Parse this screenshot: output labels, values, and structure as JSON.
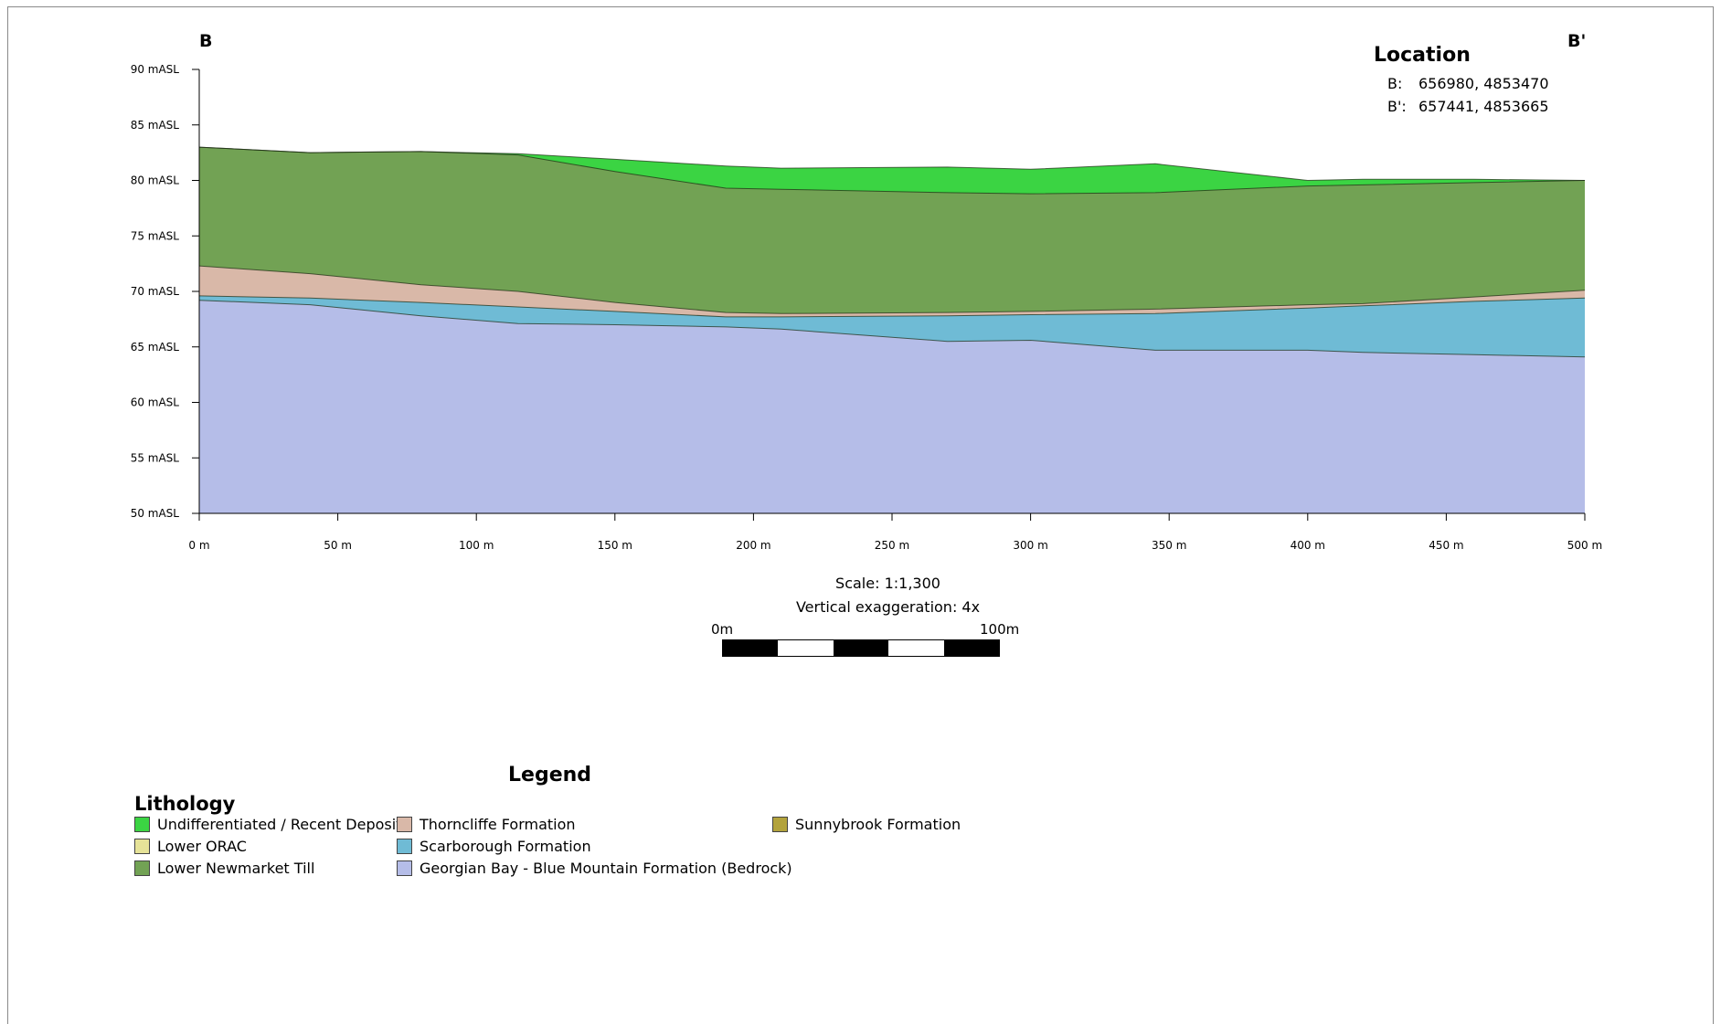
{
  "section": {
    "start_label": "B",
    "end_label": "B'",
    "y_unit_suffix": " mASL",
    "x_unit_suffix": " m",
    "y_ticks": [
      50,
      55,
      60,
      65,
      70,
      75,
      80,
      85,
      90
    ],
    "x_ticks": [
      0,
      50,
      100,
      150,
      200,
      250,
      300,
      350,
      400,
      450,
      500
    ],
    "y_range": [
      50,
      90
    ],
    "x_range": [
      0,
      500
    ],
    "layers": [
      {
        "name": "Georgian Bay - Blue Mountain Formation (Bedrock)",
        "color": "#b5bde8",
        "top": [
          [
            0,
            69.2
          ],
          [
            40,
            68.8
          ],
          [
            80,
            67.8
          ],
          [
            115,
            67.1
          ],
          [
            150,
            67.0
          ],
          [
            190,
            66.8
          ],
          [
            210,
            66.6
          ],
          [
            270,
            65.5
          ],
          [
            300,
            65.6
          ],
          [
            345,
            64.7
          ],
          [
            400,
            64.7
          ],
          [
            420,
            64.5
          ],
          [
            460,
            64.3
          ],
          [
            500,
            64.1
          ]
        ]
      },
      {
        "name": "Scarborough Formation",
        "color": "#6fbbd5",
        "top": [
          [
            0,
            69.6
          ],
          [
            40,
            69.4
          ],
          [
            80,
            69.0
          ],
          [
            115,
            68.6
          ],
          [
            150,
            68.2
          ],
          [
            190,
            67.7
          ],
          [
            210,
            67.7
          ],
          [
            270,
            67.8
          ],
          [
            300,
            67.9
          ],
          [
            345,
            68.0
          ],
          [
            400,
            68.5
          ],
          [
            420,
            68.7
          ],
          [
            460,
            69.1
          ],
          [
            500,
            69.4
          ]
        ]
      },
      {
        "name": "Thorncliffe Formation",
        "color": "#d9b8a8",
        "top": [
          [
            0,
            72.3
          ],
          [
            40,
            71.6
          ],
          [
            80,
            70.6
          ],
          [
            115,
            70.0
          ],
          [
            150,
            69.0
          ],
          [
            190,
            68.1
          ],
          [
            210,
            68.0
          ],
          [
            270,
            68.1
          ],
          [
            300,
            68.2
          ],
          [
            345,
            68.4
          ],
          [
            400,
            68.8
          ],
          [
            420,
            68.9
          ],
          [
            460,
            69.5
          ],
          [
            500,
            70.1
          ]
        ]
      },
      {
        "name": "Lower Newmarket Till",
        "color": "#72a254",
        "top": [
          [
            0,
            83.0
          ],
          [
            40,
            82.5
          ],
          [
            80,
            82.6
          ],
          [
            115,
            82.3
          ],
          [
            150,
            80.8
          ],
          [
            190,
            79.3
          ],
          [
            210,
            79.2
          ],
          [
            270,
            78.9
          ],
          [
            300,
            78.8
          ],
          [
            345,
            78.9
          ],
          [
            400,
            79.5
          ],
          [
            420,
            79.6
          ],
          [
            460,
            79.8
          ],
          [
            500,
            80.0
          ]
        ]
      },
      {
        "name": "Undifferentiated / Recent Deposits",
        "color": "#3bd443",
        "top": [
          [
            0,
            83.0
          ],
          [
            40,
            82.5
          ],
          [
            80,
            82.6
          ],
          [
            115,
            82.4
          ],
          [
            150,
            81.9
          ],
          [
            190,
            81.3
          ],
          [
            210,
            81.1
          ],
          [
            270,
            81.2
          ],
          [
            300,
            81.0
          ],
          [
            345,
            81.5
          ],
          [
            400,
            80.0
          ],
          [
            420,
            80.1
          ],
          [
            460,
            80.1
          ],
          [
            500,
            80.0
          ]
        ]
      }
    ]
  },
  "location": {
    "title": "Location",
    "rows": [
      {
        "key": "B:",
        "value": "656980, 4853470"
      },
      {
        "key": "B':",
        "value": "657441, 4853665"
      }
    ]
  },
  "scale": {
    "scale_text": "Scale: 1:1,300",
    "exaggeration_text": "Vertical exaggeration: 4x",
    "bar_start_label": "0m",
    "bar_end_label": "100m"
  },
  "legend": {
    "title": "Legend",
    "group_title": "Lithology",
    "items": [
      {
        "label": "Undifferentiated / Recent Deposits",
        "color": "#3bd443"
      },
      {
        "label": "Lower ORAC",
        "color": "#e6e398"
      },
      {
        "label": "Lower Newmarket Till",
        "color": "#72a254"
      },
      {
        "label": "Thorncliffe Formation",
        "color": "#d9b8a8"
      },
      {
        "label": "Scarborough Formation",
        "color": "#6fbbd5"
      },
      {
        "label": "Georgian Bay - Blue Mountain Formation (Bedrock)",
        "color": "#b5bde8"
      },
      {
        "label": "Sunnybrook Formation",
        "color": "#b3a33c"
      }
    ]
  }
}
